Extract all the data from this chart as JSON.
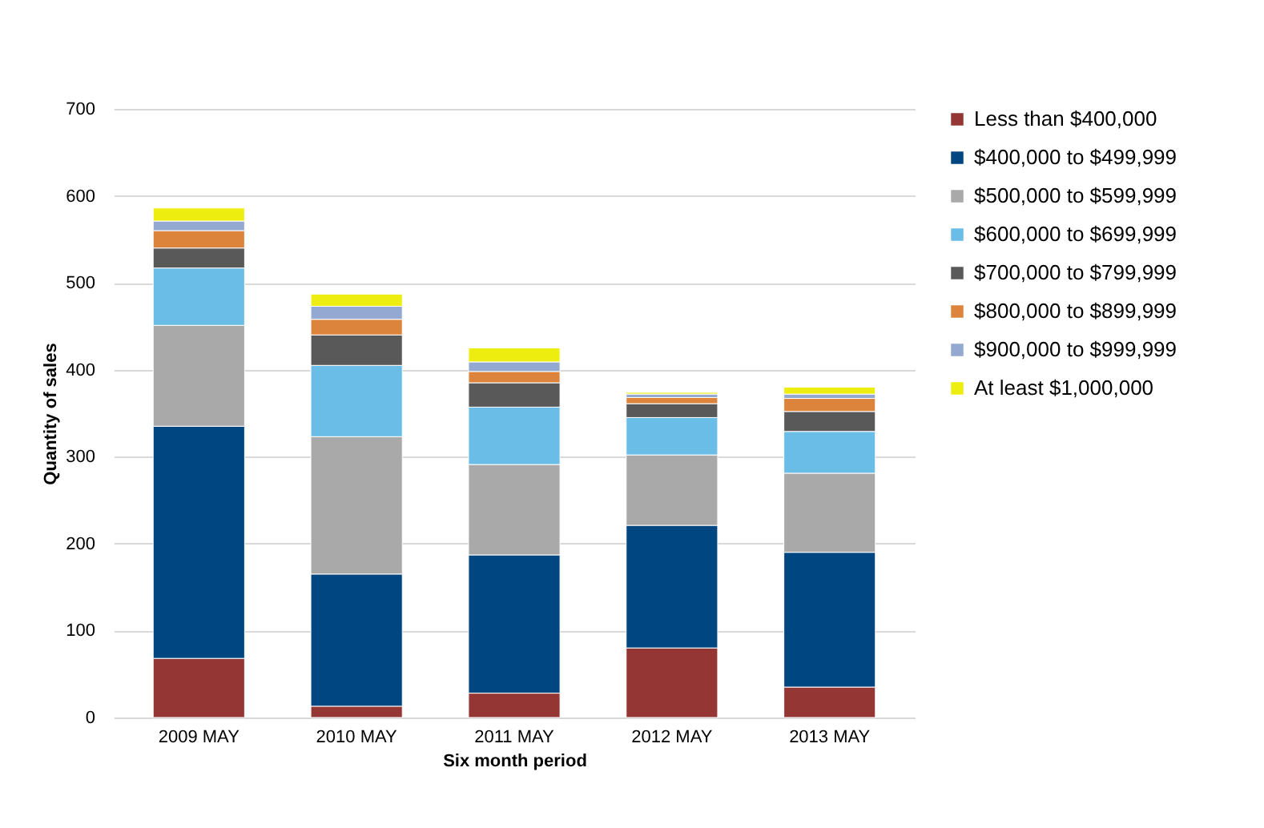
{
  "chart_data": {
    "type": "bar",
    "stacked": true,
    "xlabel": "Six month period",
    "ylabel": "Quantity of sales",
    "categories": [
      "2009 MAY",
      "2010 MAY",
      "2011 MAY",
      "2012 MAY",
      "2013 MAY"
    ],
    "ylim": [
      0,
      700
    ],
    "yticks": [
      0,
      100,
      200,
      300,
      400,
      500,
      600,
      700
    ],
    "grid": "y",
    "legend": "right",
    "series": [
      {
        "name": "Less than $400,000",
        "color": "#943634",
        "values": [
          68,
          13,
          28,
          80,
          35
        ]
      },
      {
        "name": "$400,000 to $499,999",
        "color": "#004680",
        "values": [
          267,
          152,
          159,
          141,
          155
        ]
      },
      {
        "name": "$500,000 to $599,999",
        "color": "#a9a9a9",
        "values": [
          116,
          158,
          104,
          81,
          91
        ]
      },
      {
        "name": "$600,000 to $699,999",
        "color": "#6abde6",
        "values": [
          66,
          82,
          66,
          43,
          48
        ]
      },
      {
        "name": "$700,000 to $799,999",
        "color": "#595959",
        "values": [
          23,
          35,
          28,
          16,
          23
        ]
      },
      {
        "name": "$800,000 to $899,999",
        "color": "#dc843b",
        "values": [
          20,
          18,
          13,
          7,
          15
        ]
      },
      {
        "name": "$900,000 to $999,999",
        "color": "#93a9d2",
        "values": [
          11,
          15,
          11,
          4,
          5
        ]
      },
      {
        "name": "At least $1,000,000",
        "color": "#eded10",
        "values": [
          15,
          14,
          16,
          2,
          8
        ]
      }
    ]
  }
}
